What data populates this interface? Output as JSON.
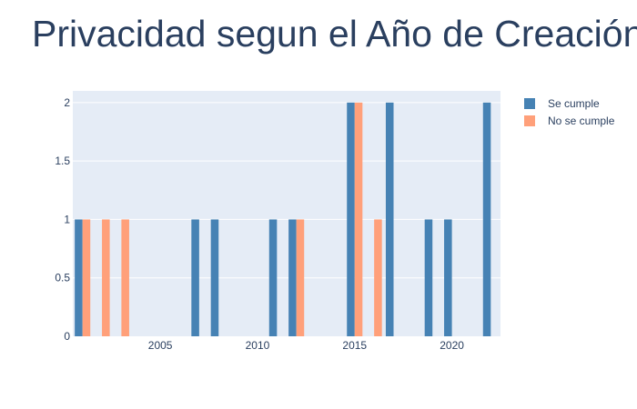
{
  "chart_data": {
    "type": "bar",
    "title": "Privacidad segun el Año de Creación",
    "xlabel": "",
    "ylabel": "",
    "xlim": [
      2000.5,
      2022.5
    ],
    "ylim": [
      0,
      2.1
    ],
    "x_ticks": [
      2005,
      2010,
      2015,
      2020
    ],
    "y_ticks": [
      0,
      0.5,
      1,
      1.5,
      2
    ],
    "y_tick_labels": [
      "0",
      "0.5",
      "1",
      "1.5",
      "2"
    ],
    "grid": true,
    "legend_position": "top-right",
    "series": [
      {
        "name": "Se cumple",
        "color": "#4682b4",
        "x": [
          2001,
          2007,
          2008,
          2011,
          2012,
          2015,
          2017,
          2019,
          2020,
          2022
        ],
        "values": [
          1,
          1,
          1,
          1,
          1,
          2,
          2,
          1,
          1,
          2
        ]
      },
      {
        "name": "No se cumple",
        "color": "#ffa07a",
        "x": [
          2001,
          2002,
          2003,
          2012,
          2015,
          2016
        ],
        "values": [
          1,
          1,
          1,
          1,
          2,
          1
        ]
      }
    ]
  },
  "colors": {
    "plot_background": "#e5ecf6",
    "gridline": "#ffffff",
    "text": "#2a3f5f"
  }
}
